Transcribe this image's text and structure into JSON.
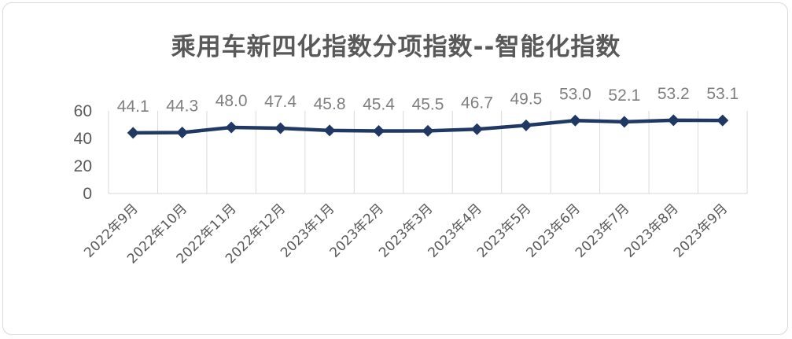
{
  "chart_data": {
    "type": "line",
    "title": "乘用车新四化指数分项指数--智能化指数",
    "categories": [
      "2022年9月",
      "2022年10月",
      "2022年11月",
      "2022年12月",
      "2023年1月",
      "2023年2月",
      "2023年3月",
      "2023年4月",
      "2023年5月",
      "2023年6月",
      "2023年7月",
      "2023年8月",
      "2023年9月"
    ],
    "series": [
      {
        "values": [
          44.1,
          44.3,
          48.0,
          47.4,
          45.8,
          45.4,
          45.5,
          46.7,
          49.5,
          53.0,
          52.1,
          53.2,
          53.1
        ]
      }
    ],
    "data_labels": [
      "44.1",
      "44.3",
      "48.0",
      "47.4",
      "45.8",
      "45.4",
      "45.5",
      "46.7",
      "49.5",
      "53.0",
      "52.1",
      "53.2",
      "53.1"
    ],
    "y_ticks": [
      "0",
      "20",
      "40",
      "60"
    ],
    "ylim": [
      0,
      60
    ],
    "grid": "vertical",
    "legend": "none",
    "line_color": "#1f3864",
    "marker": "diamond"
  }
}
